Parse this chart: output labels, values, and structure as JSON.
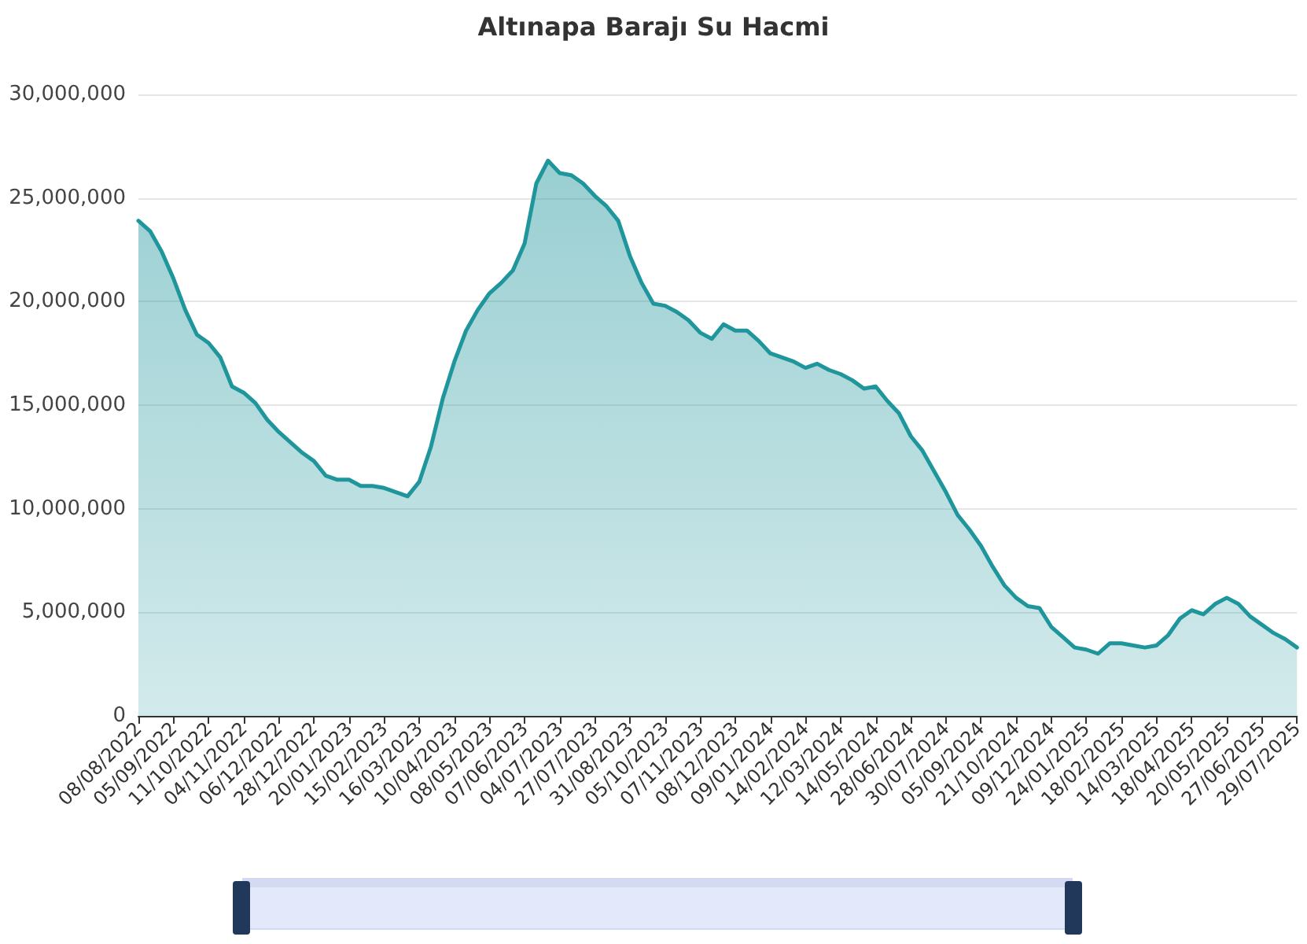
{
  "chart_data": {
    "type": "area",
    "title": "Altınapa Barajı Su Hacmi",
    "categories": [
      "08/08/2022",
      null,
      null,
      "05/09/2022",
      null,
      null,
      "11/10/2022",
      null,
      null,
      "04/11/2022",
      null,
      null,
      "06/12/2022",
      null,
      null,
      "28/12/2022",
      null,
      null,
      "20/01/2023",
      null,
      null,
      "15/02/2023",
      null,
      null,
      "16/03/2023",
      null,
      null,
      "10/04/2023",
      null,
      null,
      "08/05/2023",
      null,
      null,
      "07/06/2023",
      null,
      null,
      "04/07/2023",
      null,
      null,
      "27/07/2023",
      null,
      null,
      "31/08/2023",
      null,
      null,
      "05/10/2023",
      null,
      null,
      "07/11/2023",
      null,
      null,
      "08/12/2023",
      null,
      null,
      "09/01/2024",
      null,
      null,
      "14/02/2024",
      null,
      null,
      "12/03/2024",
      null,
      null,
      "14/05/2024",
      null,
      null,
      "28/06/2024",
      null,
      null,
      "30/07/2024",
      null,
      null,
      "05/09/2024",
      null,
      null,
      "21/10/2024",
      null,
      null,
      "09/12/2024",
      null,
      null,
      "24/01/2025",
      null,
      null,
      "18/02/2025",
      null,
      null,
      "14/03/2025",
      null,
      null,
      "18/04/2025",
      null,
      null,
      "20/05/2025",
      null,
      null,
      "27/06/2025",
      null,
      null,
      "29/07/2025"
    ],
    "series": [
      {
        "color": "#1f959c",
        "values": [
          23900000,
          23400000,
          22400000,
          21100000,
          19600000,
          18400000,
          18000000,
          17300000,
          15900000,
          15600000,
          15100000,
          14300000,
          13700000,
          13200000,
          12700000,
          12300000,
          11600000,
          11400000,
          11400000,
          11100000,
          11100000,
          11000000,
          10800000,
          10600000,
          11300000,
          13000000,
          15300000,
          17100000,
          18600000,
          19600000,
          20400000,
          20900000,
          21500000,
          22800000,
          25700000,
          26800000,
          26200000,
          26100000,
          25700000,
          25100000,
          24600000,
          23900000,
          22200000,
          20900000,
          19900000,
          19800000,
          19500000,
          19100000,
          18500000,
          18200000,
          18900000,
          18600000,
          18600000,
          18100000,
          17500000,
          17300000,
          17100000,
          16800000,
          17000000,
          16700000,
          16500000,
          16200000,
          15800000,
          15900000,
          15200000,
          14600000,
          13500000,
          12800000,
          11800000,
          10800000,
          9700000,
          9000000,
          8200000,
          7200000,
          6300000,
          5700000,
          5300000,
          5200000,
          4300000,
          3800000,
          3300000,
          3200000,
          3000000,
          3500000,
          3500000,
          3400000,
          3300000,
          3400000,
          3900000,
          4700000,
          5100000,
          4900000,
          5400000,
          5700000,
          5400000,
          4800000,
          4400000,
          4000000,
          3700000,
          3300000
        ]
      }
    ],
    "ylim": [
      0,
      30000000
    ],
    "yticks": [
      0,
      {
        "value": 5000000,
        "label": "5,000,000"
      },
      {
        "value": 10000000,
        "label": "10,000,000"
      },
      {
        "value": 15000000,
        "label": "15,000,000"
      },
      {
        "value": 20000000,
        "label": "20,000,000"
      },
      {
        "value": 25000000,
        "label": "25,000,000"
      },
      {
        "value": 30000000,
        "label": "30,000,000"
      }
    ],
    "grid": "y",
    "marker": "none",
    "line_style": "solid"
  }
}
